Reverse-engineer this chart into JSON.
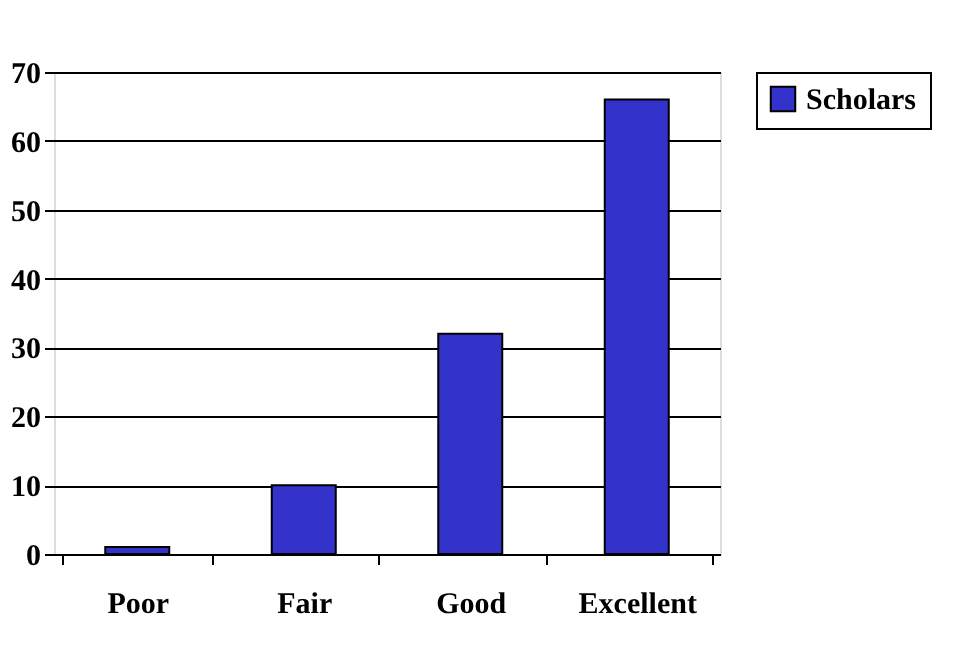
{
  "chart_data": {
    "type": "bar",
    "categories": [
      "Poor",
      "Fair",
      "Good",
      "Excellent"
    ],
    "series": [
      {
        "name": "Scholars",
        "color": "#3333cc",
        "values": [
          1,
          10,
          32,
          66
        ]
      }
    ],
    "ylim": [
      0,
      70
    ],
    "yticks": [
      0,
      10,
      20,
      30,
      40,
      50,
      60,
      70
    ],
    "grid": "y",
    "legend": "right"
  }
}
